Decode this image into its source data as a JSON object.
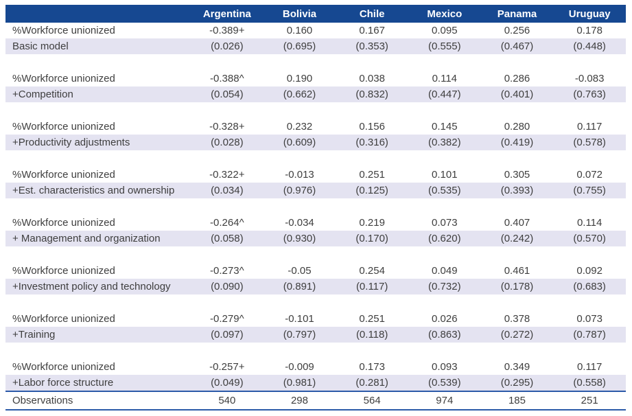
{
  "colors": {
    "header_bg": "#164891",
    "header_text": "#FFFFFF",
    "pvalue_row_bg": "#E4E3F1",
    "rule_blue": "#2B5AA8",
    "body_text": "#3E3E3E"
  },
  "table": {
    "columns": [
      "Argentina",
      "Bolivia",
      "Chile",
      "Mexico",
      "Panama",
      "Uruguay"
    ],
    "coef_row_label": "%Workforce unionized",
    "blocks": [
      {
        "model": "Basic model",
        "coefs": [
          "-0.389+",
          "0.160",
          "0.167",
          "0.095",
          "0.256",
          "0.178"
        ],
        "pvalues": [
          "(0.026)",
          "(0.695)",
          "(0.353)",
          "(0.555)",
          "(0.467)",
          "(0.448)"
        ]
      },
      {
        "model": "+Competition",
        "coefs": [
          "-0.388^",
          "0.190",
          "0.038",
          "0.114",
          "0.286",
          "-0.083"
        ],
        "pvalues": [
          "(0.054)",
          "(0.662)",
          "(0.832)",
          "(0.447)",
          "(0.401)",
          "(0.763)"
        ]
      },
      {
        "model": "+Productivity adjustments",
        "coefs": [
          "-0.328+",
          "0.232",
          "0.156",
          "0.145",
          "0.280",
          "0.117"
        ],
        "pvalues": [
          "(0.028)",
          "(0.609)",
          "(0.316)",
          "(0.382)",
          "(0.419)",
          "(0.578)"
        ]
      },
      {
        "model": "+Est. characteristics and ownership",
        "coefs": [
          "-0.322+",
          "-0.013",
          "0.251",
          "0.101",
          "0.305",
          "0.072"
        ],
        "pvalues": [
          "(0.034)",
          "(0.976)",
          "(0.125)",
          "(0.535)",
          "(0.393)",
          "(0.755)"
        ]
      },
      {
        "model": "+ Management and organization",
        "coefs": [
          "-0.264^",
          "-0.034",
          "0.219",
          "0.073",
          "0.407",
          "0.114"
        ],
        "pvalues": [
          "(0.058)",
          "(0.930)",
          "(0.170)",
          "(0.620)",
          "(0.242)",
          "(0.570)"
        ]
      },
      {
        "model": "+Investment policy and technology",
        "coefs": [
          "-0.273^",
          "-0.05",
          "0.254",
          "0.049",
          "0.461",
          "0.092"
        ],
        "pvalues": [
          "(0.090)",
          "(0.891)",
          "(0.117)",
          "(0.732)",
          "(0.178)",
          "(0.683)"
        ]
      },
      {
        "model": "+Training",
        "coefs": [
          "-0.279^",
          "-0.101",
          "0.251",
          "0.026",
          "0.378",
          "0.073"
        ],
        "pvalues": [
          "(0.097)",
          "(0.797)",
          "(0.118)",
          "(0.863)",
          "(0.272)",
          "(0.787)"
        ]
      },
      {
        "model": "+Labor force structure",
        "coefs": [
          "-0.257+",
          "-0.009",
          "0.173",
          "0.093",
          "0.349",
          "0.117"
        ],
        "pvalues": [
          "(0.049)",
          "(0.981)",
          "(0.281)",
          "(0.539)",
          "(0.295)",
          "(0.558)"
        ]
      }
    ],
    "observations": {
      "label": "Observations",
      "values": [
        "540",
        "298",
        "564",
        "974",
        "185",
        "251"
      ]
    }
  }
}
